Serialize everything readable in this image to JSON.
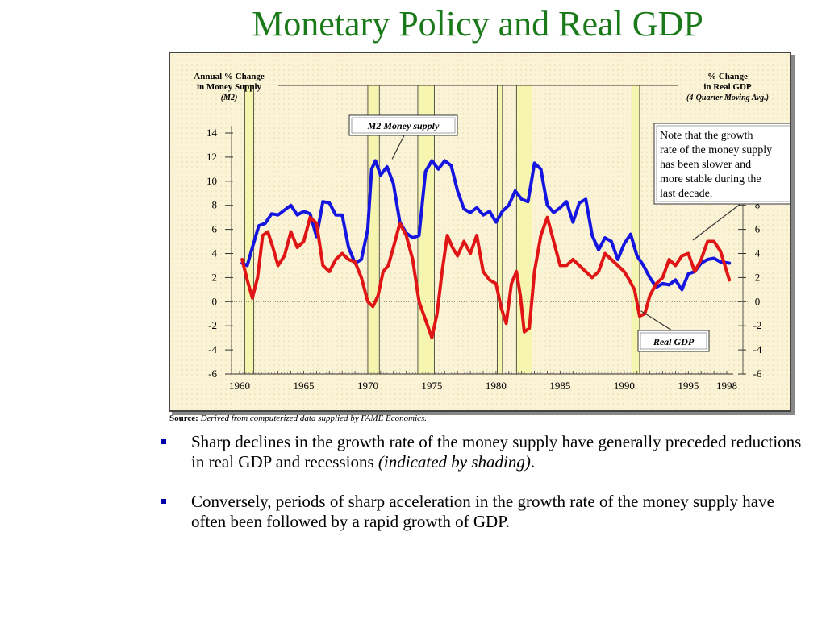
{
  "slide": {
    "title": "Monetary Policy and Real GDP"
  },
  "source": {
    "label": "Source:",
    "text": "Derived from computerized data supplied by FAME Economics."
  },
  "bullets": [
    {
      "text": "Sharp declines in the growth rate of the money supply have generally preceded reductions in real GDP and recessions ",
      "emphasis": "(indicated by shading)",
      "tail": "."
    },
    {
      "text": "Conversely, periods of sharp acceleration in the growth rate of the money supply have often been followed by a rapid growth of GDP.",
      "emphasis": "",
      "tail": ""
    }
  ],
  "colors": {
    "title": "#1a7a1a",
    "m2": "#1515e0",
    "gdp": "#e01515",
    "recession": "#f5f5b0",
    "frame_bg": "#fbf3d6",
    "bullet_marker": "#0000aa"
  },
  "chart_data": {
    "type": "line",
    "left_axis_title": {
      "line1": "Annual % Change",
      "line2": "in Money Supply",
      "line3": "(M2)"
    },
    "right_axis_title": {
      "line1": "% Change",
      "line2": "in Real GDP",
      "line3": "(4-Quarter Moving Avg.)"
    },
    "y_ticks": [
      "14",
      "12",
      "10",
      "8",
      "6",
      "4",
      "2",
      "0",
      "-2",
      "-4",
      "-6"
    ],
    "right_y_ticks": [
      "8",
      "6",
      "4",
      "2",
      "0",
      "-2",
      "-4",
      "-6"
    ],
    "x_ticks": [
      "1960",
      "1965",
      "1970",
      "1975",
      "1980",
      "1985",
      "1990",
      "1995",
      "1998"
    ],
    "ylim": [
      -6,
      14
    ],
    "xlim": [
      1960,
      1998
    ],
    "recessions": [
      [
        1960.4,
        1961.1
      ],
      [
        1970.0,
        1970.9
      ],
      [
        1973.9,
        1975.2
      ],
      [
        1980.1,
        1980.5
      ],
      [
        1981.6,
        1982.8
      ],
      [
        1990.6,
        1991.2
      ]
    ],
    "labels": {
      "m2": "M2 Money supply",
      "gdp": "Real GDP",
      "note": [
        "Note that the growth",
        "rate of the money supply",
        "has been slower and",
        "more stable during the",
        "last decade."
      ]
    },
    "series": [
      {
        "name": "M2 Money supply",
        "x": [
          1960.2,
          1960.6,
          1961.0,
          1961.5,
          1962.0,
          1962.5,
          1963.0,
          1963.5,
          1964.0,
          1964.5,
          1965.0,
          1965.5,
          1966.0,
          1966.5,
          1967.0,
          1967.5,
          1968.0,
          1968.5,
          1969.0,
          1969.5,
          1970.0,
          1970.3,
          1970.6,
          1971.0,
          1971.5,
          1972.0,
          1972.5,
          1973.0,
          1973.5,
          1974.0,
          1974.5,
          1975.0,
          1975.5,
          1976.0,
          1976.5,
          1977.0,
          1977.5,
          1978.0,
          1978.5,
          1979.0,
          1979.5,
          1980.0,
          1980.5,
          1981.0,
          1981.5,
          1982.0,
          1982.5,
          1983.0,
          1983.5,
          1984.0,
          1984.5,
          1985.0,
          1985.5,
          1986.0,
          1986.5,
          1987.0,
          1987.5,
          1988.0,
          1988.5,
          1989.0,
          1989.5,
          1990.0,
          1990.5,
          1991.0,
          1991.5,
          1992.0,
          1992.5,
          1993.0,
          1993.5,
          1994.0,
          1994.5,
          1995.0,
          1995.5,
          1996.0,
          1996.5,
          1997.0,
          1997.5,
          1998.2
        ],
        "values": [
          3.2,
          3.0,
          4.5,
          6.3,
          6.5,
          7.3,
          7.2,
          7.6,
          8.0,
          7.2,
          7.5,
          7.3,
          5.4,
          8.3,
          8.2,
          7.2,
          7.2,
          4.5,
          3.2,
          3.5,
          6.0,
          11.0,
          11.7,
          10.5,
          11.2,
          9.8,
          6.6,
          5.7,
          5.3,
          5.5,
          10.8,
          11.7,
          11.0,
          11.7,
          11.3,
          9.2,
          7.7,
          7.4,
          7.8,
          7.2,
          7.5,
          6.6,
          7.5,
          8.0,
          9.2,
          8.5,
          8.3,
          11.5,
          11.0,
          8.0,
          7.4,
          7.8,
          8.3,
          6.6,
          8.2,
          8.5,
          5.5,
          4.3,
          5.3,
          5.0,
          3.5,
          4.8,
          5.6,
          3.8,
          3.0,
          2.0,
          1.2,
          1.5,
          1.4,
          1.8,
          1.0,
          2.3,
          2.5,
          3.2,
          3.5,
          3.6,
          3.3,
          3.2
        ]
      },
      {
        "name": "Real GDP",
        "x": [
          1960.2,
          1960.6,
          1961.0,
          1961.4,
          1961.8,
          1962.2,
          1962.6,
          1963.0,
          1963.5,
          1964.0,
          1964.5,
          1965.0,
          1965.5,
          1966.0,
          1966.5,
          1967.0,
          1967.5,
          1968.0,
          1968.5,
          1969.0,
          1969.5,
          1970.0,
          1970.4,
          1970.8,
          1971.2,
          1971.6,
          1972.0,
          1972.5,
          1973.0,
          1973.5,
          1974.0,
          1974.5,
          1975.0,
          1975.4,
          1975.8,
          1976.2,
          1976.6,
          1977.0,
          1977.5,
          1978.0,
          1978.5,
          1979.0,
          1979.5,
          1980.0,
          1980.4,
          1980.8,
          1981.2,
          1981.6,
          1981.9,
          1982.2,
          1982.6,
          1983.0,
          1983.5,
          1984.0,
          1984.5,
          1985.0,
          1985.5,
          1986.0,
          1986.5,
          1987.0,
          1987.5,
          1988.0,
          1988.5,
          1989.0,
          1989.5,
          1990.0,
          1990.4,
          1990.8,
          1991.2,
          1991.6,
          1992.0,
          1992.5,
          1993.0,
          1993.5,
          1994.0,
          1994.5,
          1995.0,
          1995.5,
          1996.0,
          1996.5,
          1997.0,
          1997.5,
          1998.2
        ],
        "values": [
          3.5,
          1.8,
          0.3,
          2.0,
          5.5,
          5.8,
          4.5,
          3.0,
          3.8,
          5.8,
          4.5,
          5.0,
          7.0,
          6.5,
          3.0,
          2.5,
          3.5,
          4.0,
          3.5,
          3.3,
          2.0,
          0.0,
          -0.4,
          0.5,
          2.5,
          3.0,
          4.5,
          6.5,
          5.5,
          3.5,
          0.0,
          -1.5,
          -3.0,
          -1.0,
          2.5,
          5.5,
          4.5,
          3.8,
          5.0,
          4.0,
          5.5,
          2.5,
          1.8,
          1.5,
          -0.5,
          -1.8,
          1.5,
          2.5,
          0.5,
          -2.5,
          -2.2,
          2.5,
          5.5,
          7.0,
          5.0,
          3.0,
          3.0,
          3.5,
          3.0,
          2.5,
          2.0,
          2.5,
          4.0,
          3.5,
          3.0,
          2.5,
          1.8,
          1.0,
          -1.2,
          -1.0,
          0.5,
          1.5,
          2.0,
          3.5,
          3.0,
          3.8,
          4.0,
          2.5,
          3.5,
          5.0,
          5.0,
          4.2,
          1.8
        ]
      }
    ]
  }
}
